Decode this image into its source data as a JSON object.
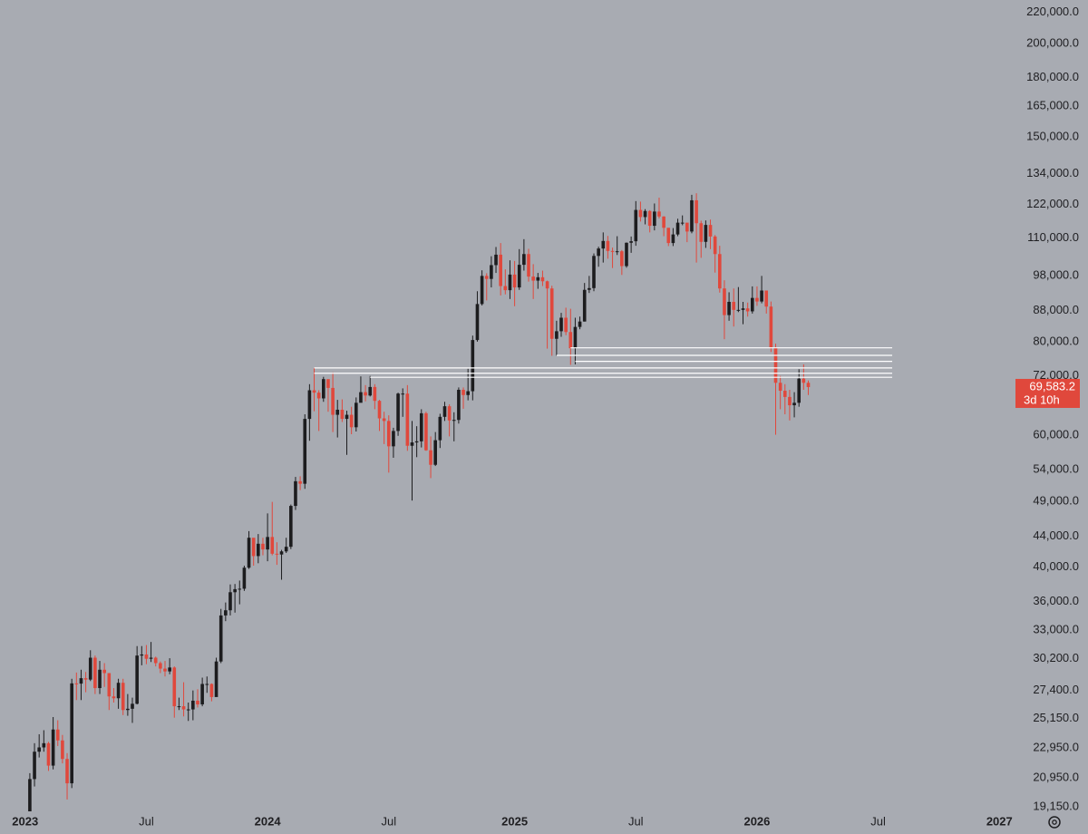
{
  "chart_data": {
    "type": "candlestick",
    "log_scale": true,
    "grid": false,
    "background": "#a8abb2",
    "up_color": "#1c1c1e",
    "down_color": "#e0483c",
    "level_color": "#ffffff",
    "ylim": [
      18900,
      228500
    ],
    "yticks": [
      {
        "value": 220000,
        "label": "220,000.0"
      },
      {
        "value": 200000,
        "label": "200,000.0"
      },
      {
        "value": 180000,
        "label": "180,000.0"
      },
      {
        "value": 165000,
        "label": "165,000.0"
      },
      {
        "value": 150000,
        "label": "150,000.0"
      },
      {
        "value": 134000,
        "label": "134,000.0"
      },
      {
        "value": 122000,
        "label": "122,000.0"
      },
      {
        "value": 110000,
        "label": "110,000.0"
      },
      {
        "value": 98000,
        "label": "98,000.0"
      },
      {
        "value": 88000,
        "label": "88,000.0"
      },
      {
        "value": 80000,
        "label": "80,000.0"
      },
      {
        "value": 72000,
        "label": "72,000.0"
      },
      {
        "value": 60000,
        "label": "60,000.0"
      },
      {
        "value": 54000,
        "label": "54,000.0"
      },
      {
        "value": 49000,
        "label": "49,000.0"
      },
      {
        "value": 44000,
        "label": "44,000.0"
      },
      {
        "value": 40000,
        "label": "40,000.0"
      },
      {
        "value": 36000,
        "label": "36,000.0"
      },
      {
        "value": 33000,
        "label": "33,000.0"
      },
      {
        "value": 30200,
        "label": "30,200.0"
      },
      {
        "value": 27400,
        "label": "27,400.0"
      },
      {
        "value": 25150,
        "label": "25,150.0"
      },
      {
        "value": 22950,
        "label": "22,950.0"
      },
      {
        "value": 20950,
        "label": "20,950.0"
      },
      {
        "value": 19150,
        "label": "19,150.0"
      }
    ],
    "xlim": [
      -6.4,
      209.5
    ],
    "xticks": [
      {
        "value": -1,
        "label": "2023"
      },
      {
        "value": 25,
        "label": "Jul"
      },
      {
        "value": 51,
        "label": "2024"
      },
      {
        "value": 77,
        "label": "Jul"
      },
      {
        "value": 104,
        "label": "2025"
      },
      {
        "value": 130,
        "label": "Jul"
      },
      {
        "value": 156,
        "label": "2026"
      },
      {
        "value": 182,
        "label": "Jul"
      },
      {
        "value": 208,
        "label": "2027"
      }
    ],
    "open": [
      17180,
      20870,
      22700,
      23000,
      23300,
      21750,
      24300,
      23500,
      22200,
      20600,
      28000,
      27980,
      28450,
      28330,
      30300,
      27600,
      29200,
      28900,
      26900,
      26750,
      28050,
      25800,
      25900,
      26300,
      30500,
      30600,
      30200,
      30300,
      29800,
      29300,
      29050,
      29400,
      26100,
      26100,
      25850,
      25850,
      26550,
      26250,
      27950,
      27950,
      26850,
      29950,
      34500,
      35050,
      37050,
      37400,
      37450,
      39950,
      43800,
      41400,
      43000,
      42250,
      43900,
      41700,
      41600,
      42000,
      42600,
      48300,
      52100,
      51700,
      63100,
      68900,
      68400,
      67200,
      71300,
      69400,
      63900,
      64900,
      63100,
      63900,
      61500,
      66300,
      68500,
      67800,
      69600,
      66700,
      63200,
      62700,
      58000,
      60800,
      68200,
      68200,
      58100,
      58700,
      58900,
      64200,
      57300,
      54800,
      59100,
      63500,
      65600,
      62800,
      62900,
      69000,
      67900,
      68700,
      80400,
      89800,
      97900,
      97000,
      101200,
      104500,
      94900,
      93700,
      98300,
      94500,
      101300,
      104700,
      97700,
      96500,
      97500,
      96300,
      94200,
      80700,
      82600,
      86100,
      82400,
      78400,
      83700,
      85100,
      93800,
      94300,
      104100,
      106500,
      109000,
      105700,
      105500,
      105600,
      100900,
      108400,
      108900,
      119900,
      117300,
      119500,
      114200,
      119300,
      117500,
      113500,
      108300,
      111200,
      115300,
      115300,
      112200,
      123500,
      115100,
      108700,
      114500,
      110500,
      104700,
      94200,
      86800,
      90400,
      88200,
      88200,
      88600,
      87800,
      91500,
      90500,
      93600,
      89100,
      78600,
      70500,
      68800,
      67500,
      65800,
      66300,
      71400,
      70500
    ],
    "high": [
      21250,
      23300,
      23950,
      24250,
      23400,
      25250,
      25000,
      23900,
      22600,
      28400,
      28950,
      29200,
      29000,
      31000,
      30500,
      30000,
      29800,
      28900,
      27600,
      28400,
      28400,
      27100,
      26800,
      31400,
      31400,
      31500,
      31800,
      30400,
      29950,
      30000,
      30250,
      29500,
      26800,
      28100,
      26400,
      27400,
      27500,
      28500,
      28600,
      28000,
      30300,
      35200,
      35900,
      37950,
      38000,
      38400,
      40200,
      44700,
      43500,
      44300,
      43800,
      47200,
      48900,
      43200,
      42200,
      43800,
      48500,
      52800,
      52900,
      64000,
      70200,
      73800,
      68900,
      71800,
      71200,
      72800,
      66900,
      67000,
      64700,
      65500,
      67400,
      71900,
      70000,
      72000,
      70200,
      66900,
      64500,
      63800,
      61400,
      68400,
      69300,
      70000,
      62700,
      61700,
      65000,
      64500,
      59800,
      60600,
      64100,
      66500,
      66000,
      64400,
      69500,
      69500,
      73600,
      81500,
      93400,
      99600,
      98700,
      104000,
      107000,
      108300,
      99900,
      102700,
      102500,
      106300,
      109600,
      106400,
      101500,
      98800,
      99500,
      96500,
      95000,
      85300,
      87400,
      88800,
      88500,
      86100,
      86400,
      95800,
      97900,
      104900,
      107100,
      111900,
      110700,
      106800,
      110600,
      106000,
      108500,
      110500,
      123200,
      123000,
      120200,
      119800,
      122300,
      124500,
      117600,
      113400,
      113400,
      116700,
      117900,
      113400,
      125600,
      126200,
      116000,
      116100,
      116400,
      111000,
      107400,
      96600,
      93100,
      94200,
      94600,
      90400,
      90200,
      94800,
      94800,
      97900,
      93500,
      90500,
      79500,
      72000,
      70200,
      69000,
      68500,
      73500,
      74600,
      71000
    ],
    "low": [
      17150,
      20400,
      22300,
      22700,
      21400,
      21500,
      23100,
      21900,
      19600,
      20300,
      26600,
      26600,
      27250,
      28200,
      27100,
      27100,
      27700,
      25800,
      26400,
      25900,
      25400,
      25350,
      24800,
      26250,
      29600,
      29700,
      29900,
      29500,
      28900,
      28600,
      28800,
      25200,
      25800,
      25300,
      24950,
      25000,
      26000,
      26100,
      27200,
      26500,
      26900,
      29800,
      33900,
      34500,
      34800,
      35700,
      37200,
      39800,
      40200,
      40500,
      41500,
      40750,
      41500,
      40300,
      38500,
      41800,
      42300,
      47700,
      50700,
      50900,
      59000,
      64600,
      60800,
      66500,
      64500,
      60600,
      59600,
      62500,
      56500,
      60200,
      60700,
      66700,
      66600,
      67600,
      65000,
      60800,
      58400,
      53500,
      56000,
      59900,
      63500,
      57200,
      49100,
      56100,
      57800,
      57200,
      52600,
      54600,
      57700,
      62700,
      59800,
      58900,
      62200,
      65100,
      66800,
      66800,
      80000,
      89400,
      90800,
      94500,
      98800,
      92200,
      92500,
      91200,
      89200,
      93800,
      99500,
      96200,
      91200,
      94100,
      94900,
      78300,
      76600,
      76600,
      81200,
      81600,
      74500,
      74600,
      83100,
      85100,
      92900,
      93400,
      100700,
      102000,
      103200,
      100300,
      104400,
      98200,
      100400,
      105100,
      107400,
      115700,
      114700,
      111900,
      112600,
      116800,
      110600,
      107300,
      107300,
      110600,
      114400,
      108600,
      111600,
      102000,
      103500,
      106700,
      106300,
      98900,
      93000,
      80600,
      85300,
      83800,
      87600,
      84400,
      86400,
      87200,
      89300,
      90000,
      87200,
      77500,
      60100,
      65000,
      64000,
      62800,
      63400,
      65500,
      69000,
      67900
    ],
    "close": [
      20870,
      22700,
      23000,
      23300,
      21750,
      24300,
      23500,
      22200,
      20600,
      28000,
      27980,
      28450,
      28330,
      30300,
      27600,
      29200,
      28900,
      26900,
      26750,
      28050,
      25800,
      25900,
      26300,
      30500,
      30600,
      30200,
      30300,
      29800,
      29300,
      29050,
      29400,
      26100,
      26100,
      25850,
      25850,
      26550,
      26250,
      27950,
      27950,
      26850,
      29950,
      34500,
      35050,
      37050,
      37400,
      37450,
      39950,
      43800,
      41400,
      43000,
      42250,
      43900,
      41700,
      41600,
      42000,
      42600,
      48300,
      52100,
      51700,
      63100,
      68900,
      68400,
      67200,
      71300,
      69400,
      63900,
      64900,
      63100,
      63900,
      61500,
      66300,
      68500,
      67800,
      69600,
      66700,
      63200,
      62700,
      58000,
      60800,
      68200,
      68200,
      58100,
      58700,
      58900,
      64200,
      57300,
      54800,
      59100,
      63500,
      65600,
      62800,
      62900,
      69000,
      67900,
      68700,
      80400,
      89800,
      97900,
      97000,
      101200,
      104500,
      94900,
      93700,
      98300,
      94500,
      101300,
      104700,
      97700,
      96500,
      97500,
      96300,
      94200,
      80700,
      82600,
      86100,
      82400,
      78400,
      83700,
      85100,
      93800,
      94300,
      104100,
      106500,
      109000,
      105700,
      105500,
      105600,
      100900,
      108400,
      108900,
      119900,
      117300,
      119500,
      114200,
      119300,
      117500,
      113500,
      108300,
      111200,
      115300,
      115300,
      112200,
      123500,
      115100,
      108700,
      114500,
      110500,
      104700,
      94200,
      86800,
      90400,
      88200,
      88200,
      88600,
      87800,
      91500,
      90500,
      93600,
      89100,
      78600,
      70500,
      68800,
      67500,
      65800,
      66300,
      71400,
      70500,
      69583.2
    ],
    "levels": [
      {
        "value": 78500,
        "from": 116,
        "to": 185
      },
      {
        "value": 76700,
        "from": 113,
        "to": 185
      },
      {
        "value": 75300,
        "from": 117,
        "to": 185
      },
      {
        "value": 73800,
        "from": 61,
        "to": 185
      },
      {
        "value": 72600,
        "from": 61,
        "to": 185
      },
      {
        "value": 71700,
        "from": 73,
        "to": 185
      }
    ],
    "last_price": {
      "value": 69583.2,
      "label": "69,583.2"
    },
    "countdown": "3d 10h"
  }
}
